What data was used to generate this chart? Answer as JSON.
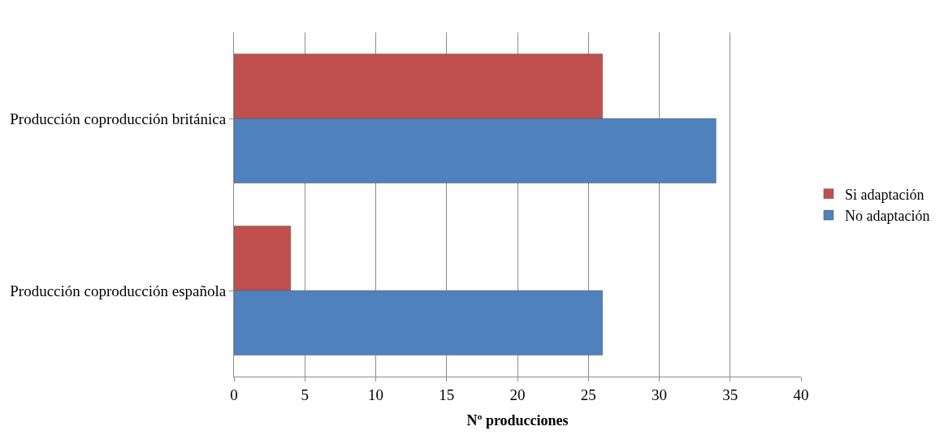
{
  "chart_data": {
    "type": "bar",
    "orientation": "horizontal",
    "xlabel": "Nº producciones",
    "categories": [
      "Producción coproducción británica",
      "Producción coproducción española"
    ],
    "series": [
      {
        "name": "Si adaptación",
        "color": "#c0504d",
        "values": [
          26,
          4
        ]
      },
      {
        "name": "No adaptación",
        "color": "#4f81bd",
        "values": [
          34,
          26
        ]
      }
    ],
    "xlim": [
      0,
      40
    ],
    "xticks": [
      0,
      5,
      10,
      15,
      20,
      25,
      30,
      35,
      40
    ],
    "grid": "x",
    "legend": "right"
  }
}
